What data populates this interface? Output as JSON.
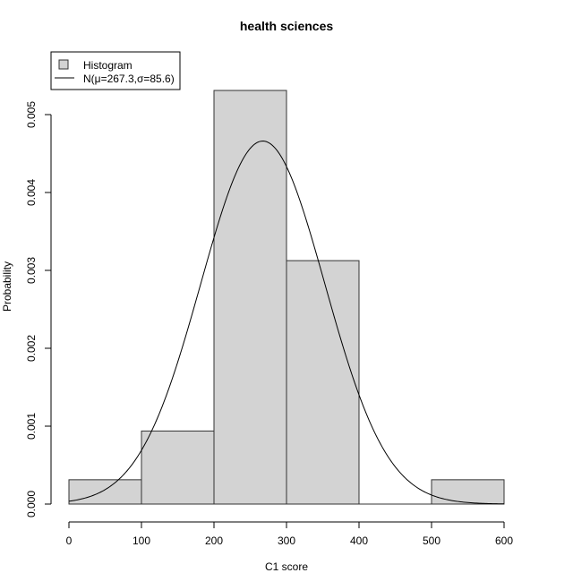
{
  "chart_data": {
    "type": "bar",
    "title": "health sciences",
    "xlabel": "C1 score",
    "ylabel": "Probability",
    "bins": [
      {
        "start": 0,
        "end": 100,
        "density": 0.000312
      },
      {
        "start": 100,
        "end": 200,
        "density": 0.000938
      },
      {
        "start": 200,
        "end": 300,
        "density": 0.00531
      },
      {
        "start": 300,
        "end": 400,
        "density": 0.003125
      },
      {
        "start": 400,
        "end": 500,
        "density": 0
      },
      {
        "start": 500,
        "end": 600,
        "density": 0.000312
      }
    ],
    "normal_curve": {
      "mu": 267.3,
      "sigma": 85.6
    },
    "xlim": [
      0,
      600
    ],
    "ylim": [
      0,
      0.005
    ],
    "x_ticks": [
      "0",
      "100",
      "200",
      "300",
      "400",
      "500",
      "600"
    ],
    "y_ticks": [
      "0.000",
      "0.001",
      "0.002",
      "0.003",
      "0.004",
      "0.005"
    ],
    "legend": {
      "position": "top-left",
      "entries": [
        "Histogram",
        "N(μ=267.3,σ=85.6)"
      ]
    },
    "colors": {
      "bar_fill": "#d3d3d3",
      "bar_stroke": "#333333",
      "curve": "#000000"
    }
  }
}
